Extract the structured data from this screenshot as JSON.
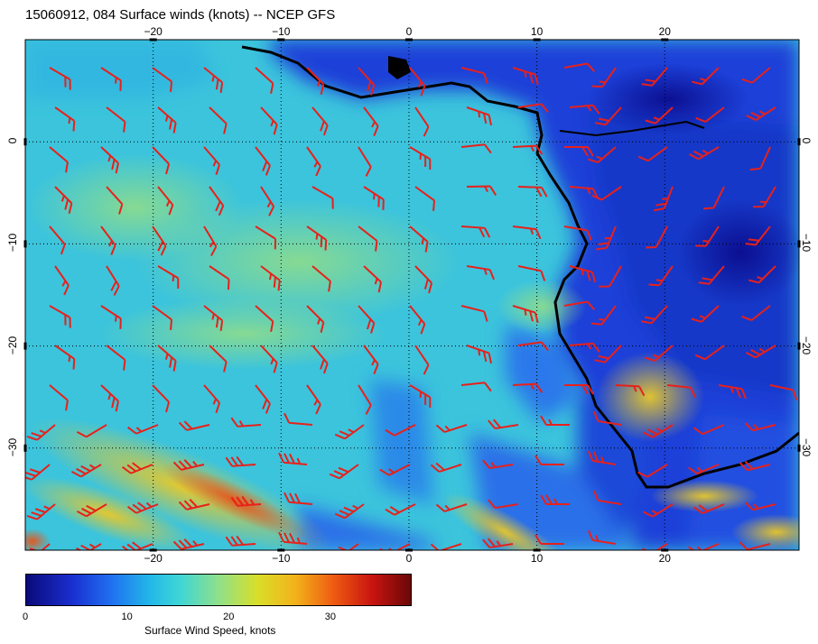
{
  "title": "15060912, 084 Surface winds (knots) -- NCEP GFS",
  "map": {
    "lon_ticks": [
      "−20",
      "−10",
      "0",
      "10",
      "20"
    ],
    "lat_ticks": [
      "0",
      "−10",
      "−20",
      "−30"
    ],
    "lon_values": [
      -20,
      -10,
      0,
      10,
      20
    ],
    "lat_values": [
      0,
      -10,
      -20,
      -30
    ],
    "lon_range": [
      -30,
      30.5
    ],
    "lat_range": [
      -40,
      10
    ],
    "grid": "dotted",
    "features": [
      "coastline",
      "wind-barbs",
      "wind-speed-shading"
    ],
    "barb_color": "#e8201a"
  },
  "colorbar": {
    "label": "Surface Wind Speed, knots",
    "ticks": [
      "0",
      "10",
      "20",
      "30"
    ],
    "tick_values": [
      0,
      10,
      20,
      30
    ],
    "range": [
      0,
      38
    ],
    "colors": [
      "#0a0a7a",
      "#1f6ff0",
      "#3ed6d6",
      "#d8df2a",
      "#ee5a12",
      "#6a0808"
    ]
  }
}
